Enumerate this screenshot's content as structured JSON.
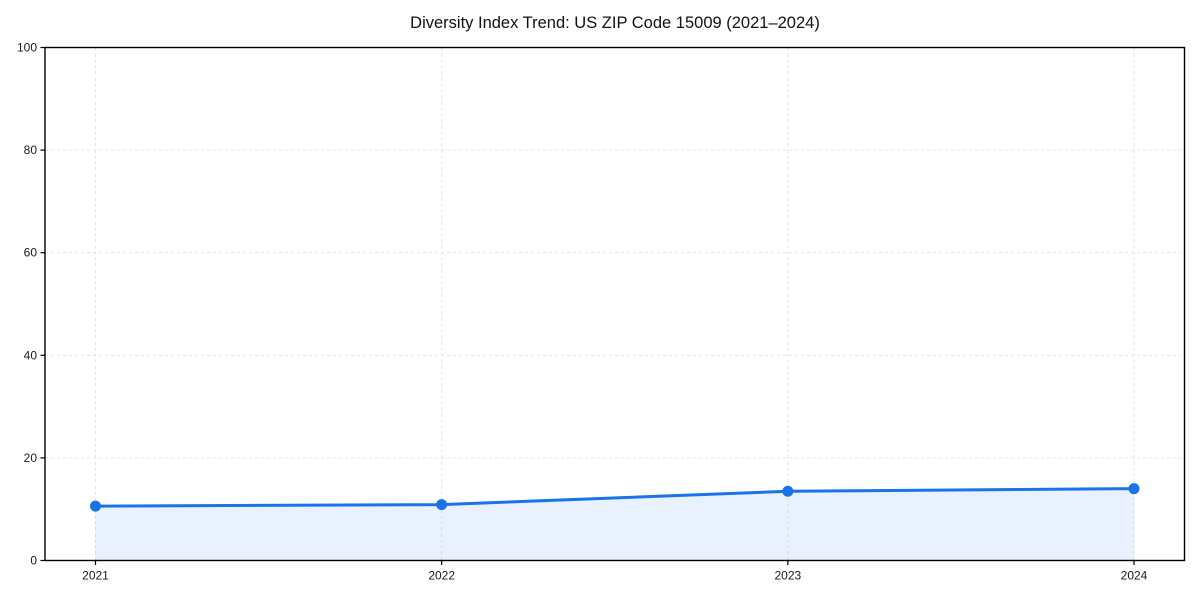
{
  "figure": {
    "background": "#ffffff"
  },
  "chart_data": {
    "type": "line",
    "title": "Diversity Index Trend: US ZIP Code 15009 (2021–2024)",
    "series_name": "Diversity Index",
    "categories": [
      "2021",
      "2022",
      "2023",
      "2024"
    ],
    "values": [
      10.6,
      10.9,
      13.5,
      14.0
    ],
    "xlabel": "",
    "ylabel": "",
    "ylim": [
      0,
      100
    ],
    "yticks": [
      0,
      20,
      40,
      60,
      80,
      100
    ],
    "grid": true,
    "grid_style": "dashed",
    "legend_position": "none",
    "area_fill": true,
    "marker": "circle",
    "colors": {
      "line": "#1a73e8",
      "marker": "#1a73e8",
      "area_fill": "rgba(26,115,232,0.10)",
      "grid": "#e3e3e3",
      "axis": "#000000",
      "tick_text": "#1a1a1a",
      "title_text": "#111111",
      "background": "#ffffff"
    }
  }
}
